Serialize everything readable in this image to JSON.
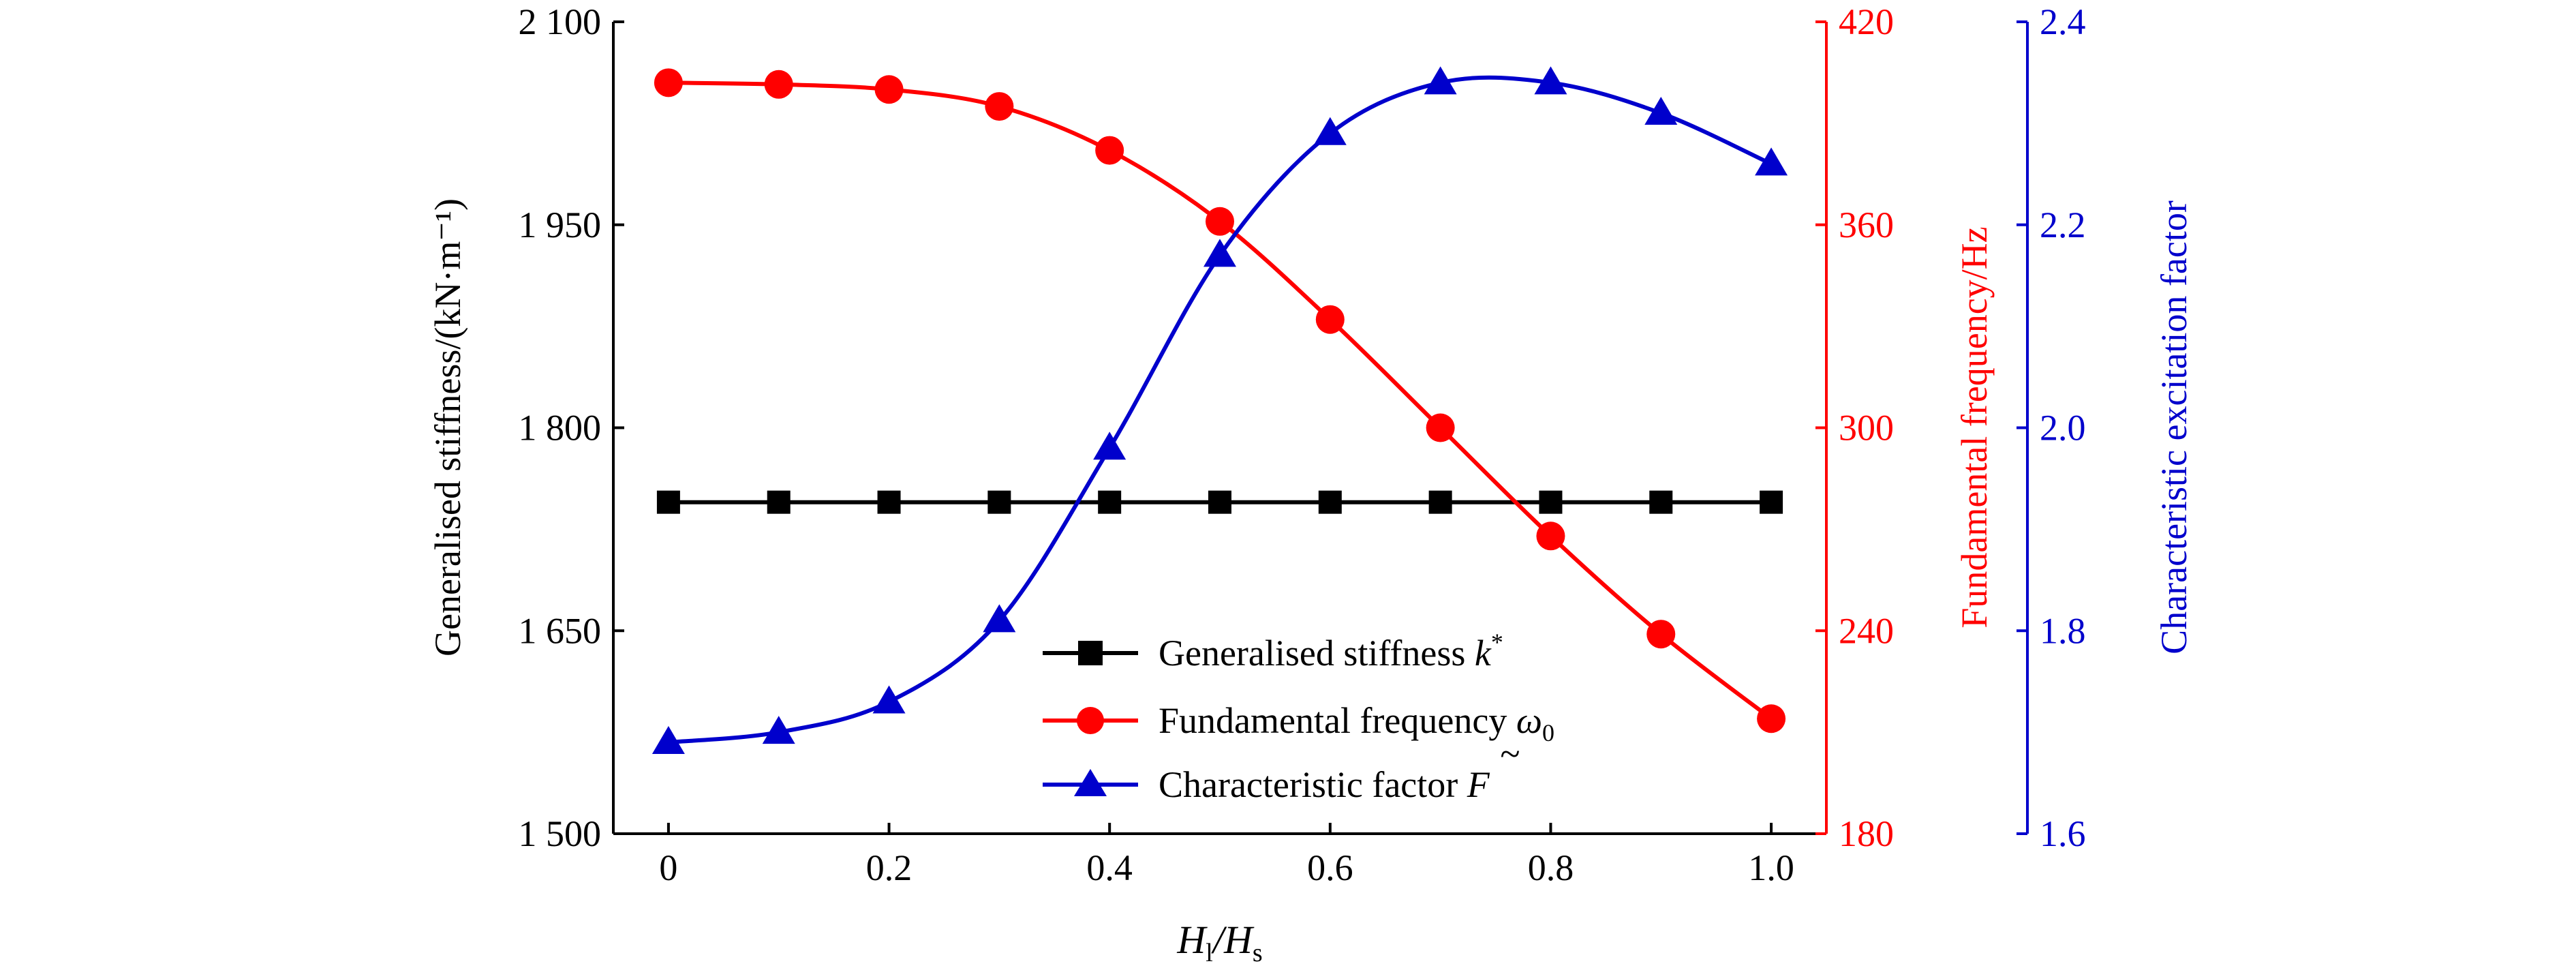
{
  "chart_data": {
    "type": "line",
    "x": [
      0,
      0.1,
      0.2,
      0.3,
      0.4,
      0.5,
      0.6,
      0.7,
      0.8,
      0.9,
      1.0
    ],
    "x_tick_labels": [
      "0",
      "0.2",
      "0.4",
      "0.6",
      "0.8",
      "1.0"
    ],
    "x_ticks": [
      0,
      0.2,
      0.4,
      0.6,
      0.8,
      1.0
    ],
    "xlim": [
      -0.05,
      1.05
    ],
    "xlabel": {
      "main": "H",
      "sub1": "l",
      "sep": "/H",
      "sub2": "s"
    },
    "axes": {
      "left": {
        "label": "Generalised stiffness/(kN·m⁻¹)",
        "ylim": [
          1500,
          2100
        ],
        "ticks": [
          1500,
          1650,
          1800,
          1950,
          2100
        ],
        "tick_labels": [
          "1 500",
          "1 650",
          "1 800",
          "1 950",
          "2 100"
        ],
        "color": "#000000"
      },
      "right1": {
        "label": "Fundamental frequency/Hz",
        "ylim": [
          180,
          420
        ],
        "ticks": [
          180,
          240,
          300,
          360,
          420
        ],
        "tick_labels": [
          "180",
          "240",
          "300",
          "360",
          "420"
        ],
        "color": "#ff0000"
      },
      "right2": {
        "label": "Characteristic excitation factor",
        "ylim": [
          1.6,
          2.4
        ],
        "ticks": [
          1.6,
          1.8,
          2.0,
          2.2,
          2.4
        ],
        "tick_labels": [
          "1.6",
          "1.8",
          "2.0",
          "2.2",
          "2.4"
        ],
        "color": "#0000cc"
      }
    },
    "series": [
      {
        "name": "Generalised stiffness k*",
        "legend_text": "Generalised stiffness ",
        "legend_symbol": "k",
        "legend_sup": "*",
        "axis": "left",
        "marker": "square",
        "color": "#000000",
        "values": [
          1745,
          1745,
          1745,
          1745,
          1745,
          1745,
          1745,
          1745,
          1745,
          1745,
          1745
        ]
      },
      {
        "name": "Fundamental frequency ω0",
        "legend_text": "Fundamental frequency ",
        "legend_symbol": "ω",
        "legend_sub": "0",
        "axis": "right1",
        "marker": "circle",
        "color": "#ff0000",
        "values": [
          402,
          401.5,
          400,
          395,
          382,
          361,
          332,
          300,
          268,
          239,
          214
        ]
      },
      {
        "name": "Characteristic factor F̃",
        "legend_text": "Characteristic factor ",
        "legend_symbol": "F",
        "legend_tilde": "~",
        "axis": "right2",
        "marker": "triangle",
        "color": "#0000cc",
        "values": [
          1.69,
          1.7,
          1.73,
          1.81,
          1.98,
          2.17,
          2.29,
          2.34,
          2.34,
          2.31,
          2.26
        ]
      }
    ],
    "grid": false,
    "legend_position": "lower-center"
  }
}
